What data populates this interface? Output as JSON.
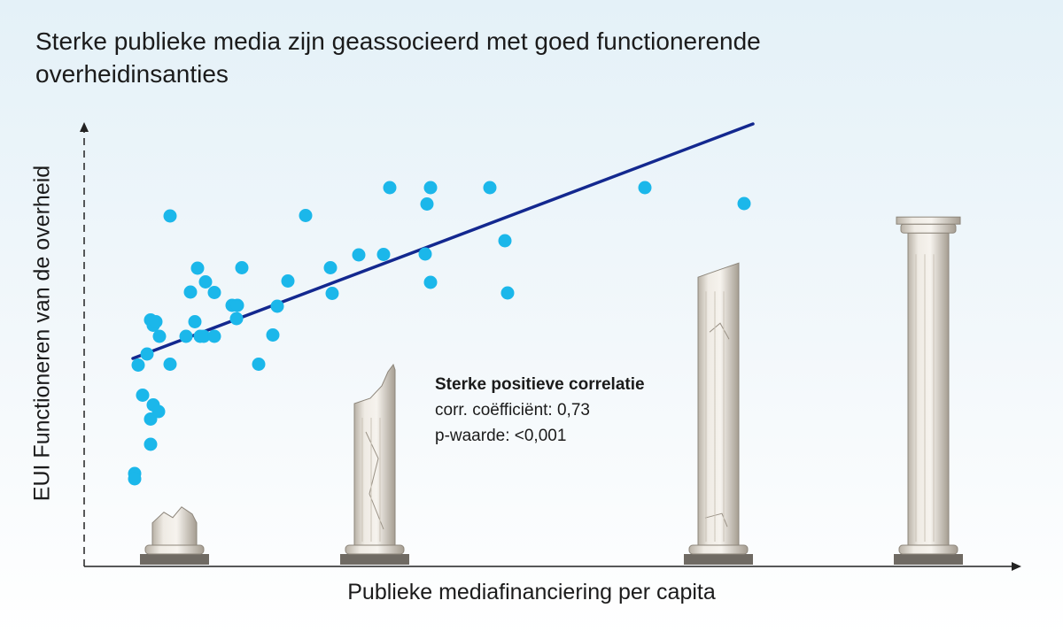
{
  "chart_data": {
    "type": "scatter",
    "title": "Sterke publieke media zijn geassocieerd met goed functionerende overheidinsanties",
    "xlabel": "Publieke mediafinanciering per capita",
    "ylabel": "EUI Functioneren van de overheid",
    "xlim": [
      0,
      100
    ],
    "ylim": [
      0,
      100
    ],
    "grid": false,
    "axis_ticks": "none",
    "point_color": "#1bb7ea",
    "trend_color": "#13288f",
    "trendline": [
      [
        5,
        47
      ],
      [
        75,
        100
      ]
    ],
    "points": [
      {
        "x": 5.2,
        "y": 21.0
      },
      {
        "x": 5.2,
        "y": 19.8
      },
      {
        "x": 5.6,
        "y": 45.5
      },
      {
        "x": 6.1,
        "y": 38.7
      },
      {
        "x": 6.6,
        "y": 48.0
      },
      {
        "x": 7.0,
        "y": 33.3
      },
      {
        "x": 7.0,
        "y": 27.6
      },
      {
        "x": 7.0,
        "y": 55.7
      },
      {
        "x": 7.3,
        "y": 54.5
      },
      {
        "x": 7.3,
        "y": 36.5
      },
      {
        "x": 7.9,
        "y": 35.0
      },
      {
        "x": 7.6,
        "y": 55.3
      },
      {
        "x": 8.0,
        "y": 52.0
      },
      {
        "x": 9.2,
        "y": 45.7
      },
      {
        "x": 9.2,
        "y": 79.2
      },
      {
        "x": 11.0,
        "y": 52.0
      },
      {
        "x": 11.5,
        "y": 62.0
      },
      {
        "x": 12.0,
        "y": 55.3
      },
      {
        "x": 12.3,
        "y": 67.4
      },
      {
        "x": 12.6,
        "y": 52.0
      },
      {
        "x": 13.0,
        "y": 52.0
      },
      {
        "x": 13.2,
        "y": 64.3
      },
      {
        "x": 14.2,
        "y": 61.9
      },
      {
        "x": 14.2,
        "y": 52.0
      },
      {
        "x": 16.2,
        "y": 59.0
      },
      {
        "x": 16.7,
        "y": 56.0
      },
      {
        "x": 16.8,
        "y": 59.0
      },
      {
        "x": 17.3,
        "y": 67.5
      },
      {
        "x": 19.2,
        "y": 45.7
      },
      {
        "x": 20.8,
        "y": 52.3
      },
      {
        "x": 21.3,
        "y": 58.8
      },
      {
        "x": 22.5,
        "y": 64.5
      },
      {
        "x": 24.5,
        "y": 79.3
      },
      {
        "x": 27.3,
        "y": 67.5
      },
      {
        "x": 27.5,
        "y": 61.7
      },
      {
        "x": 30.5,
        "y": 70.4
      },
      {
        "x": 33.3,
        "y": 70.5
      },
      {
        "x": 34.0,
        "y": 85.6
      },
      {
        "x": 38.0,
        "y": 70.6
      },
      {
        "x": 38.2,
        "y": 81.9
      },
      {
        "x": 38.6,
        "y": 85.6
      },
      {
        "x": 38.6,
        "y": 64.2
      },
      {
        "x": 45.3,
        "y": 85.6
      },
      {
        "x": 47.0,
        "y": 73.6
      },
      {
        "x": 47.3,
        "y": 61.8
      },
      {
        "x": 62.8,
        "y": 85.6
      },
      {
        "x": 74.0,
        "y": 82.0
      }
    ]
  },
  "annotation": {
    "heading": "Sterke positieve correlatie",
    "corr": "corr. coëfficiënt: 0,73",
    "pvalue": "p-waarde: <0,001"
  },
  "columns": [
    {
      "state": "ruined",
      "shaft_height": 0.06
    },
    {
      "state": "broken",
      "shaft_height": 0.4
    },
    {
      "state": "cracked",
      "shaft_height": 0.74
    },
    {
      "state": "intact",
      "shaft_height": 0.84
    }
  ]
}
